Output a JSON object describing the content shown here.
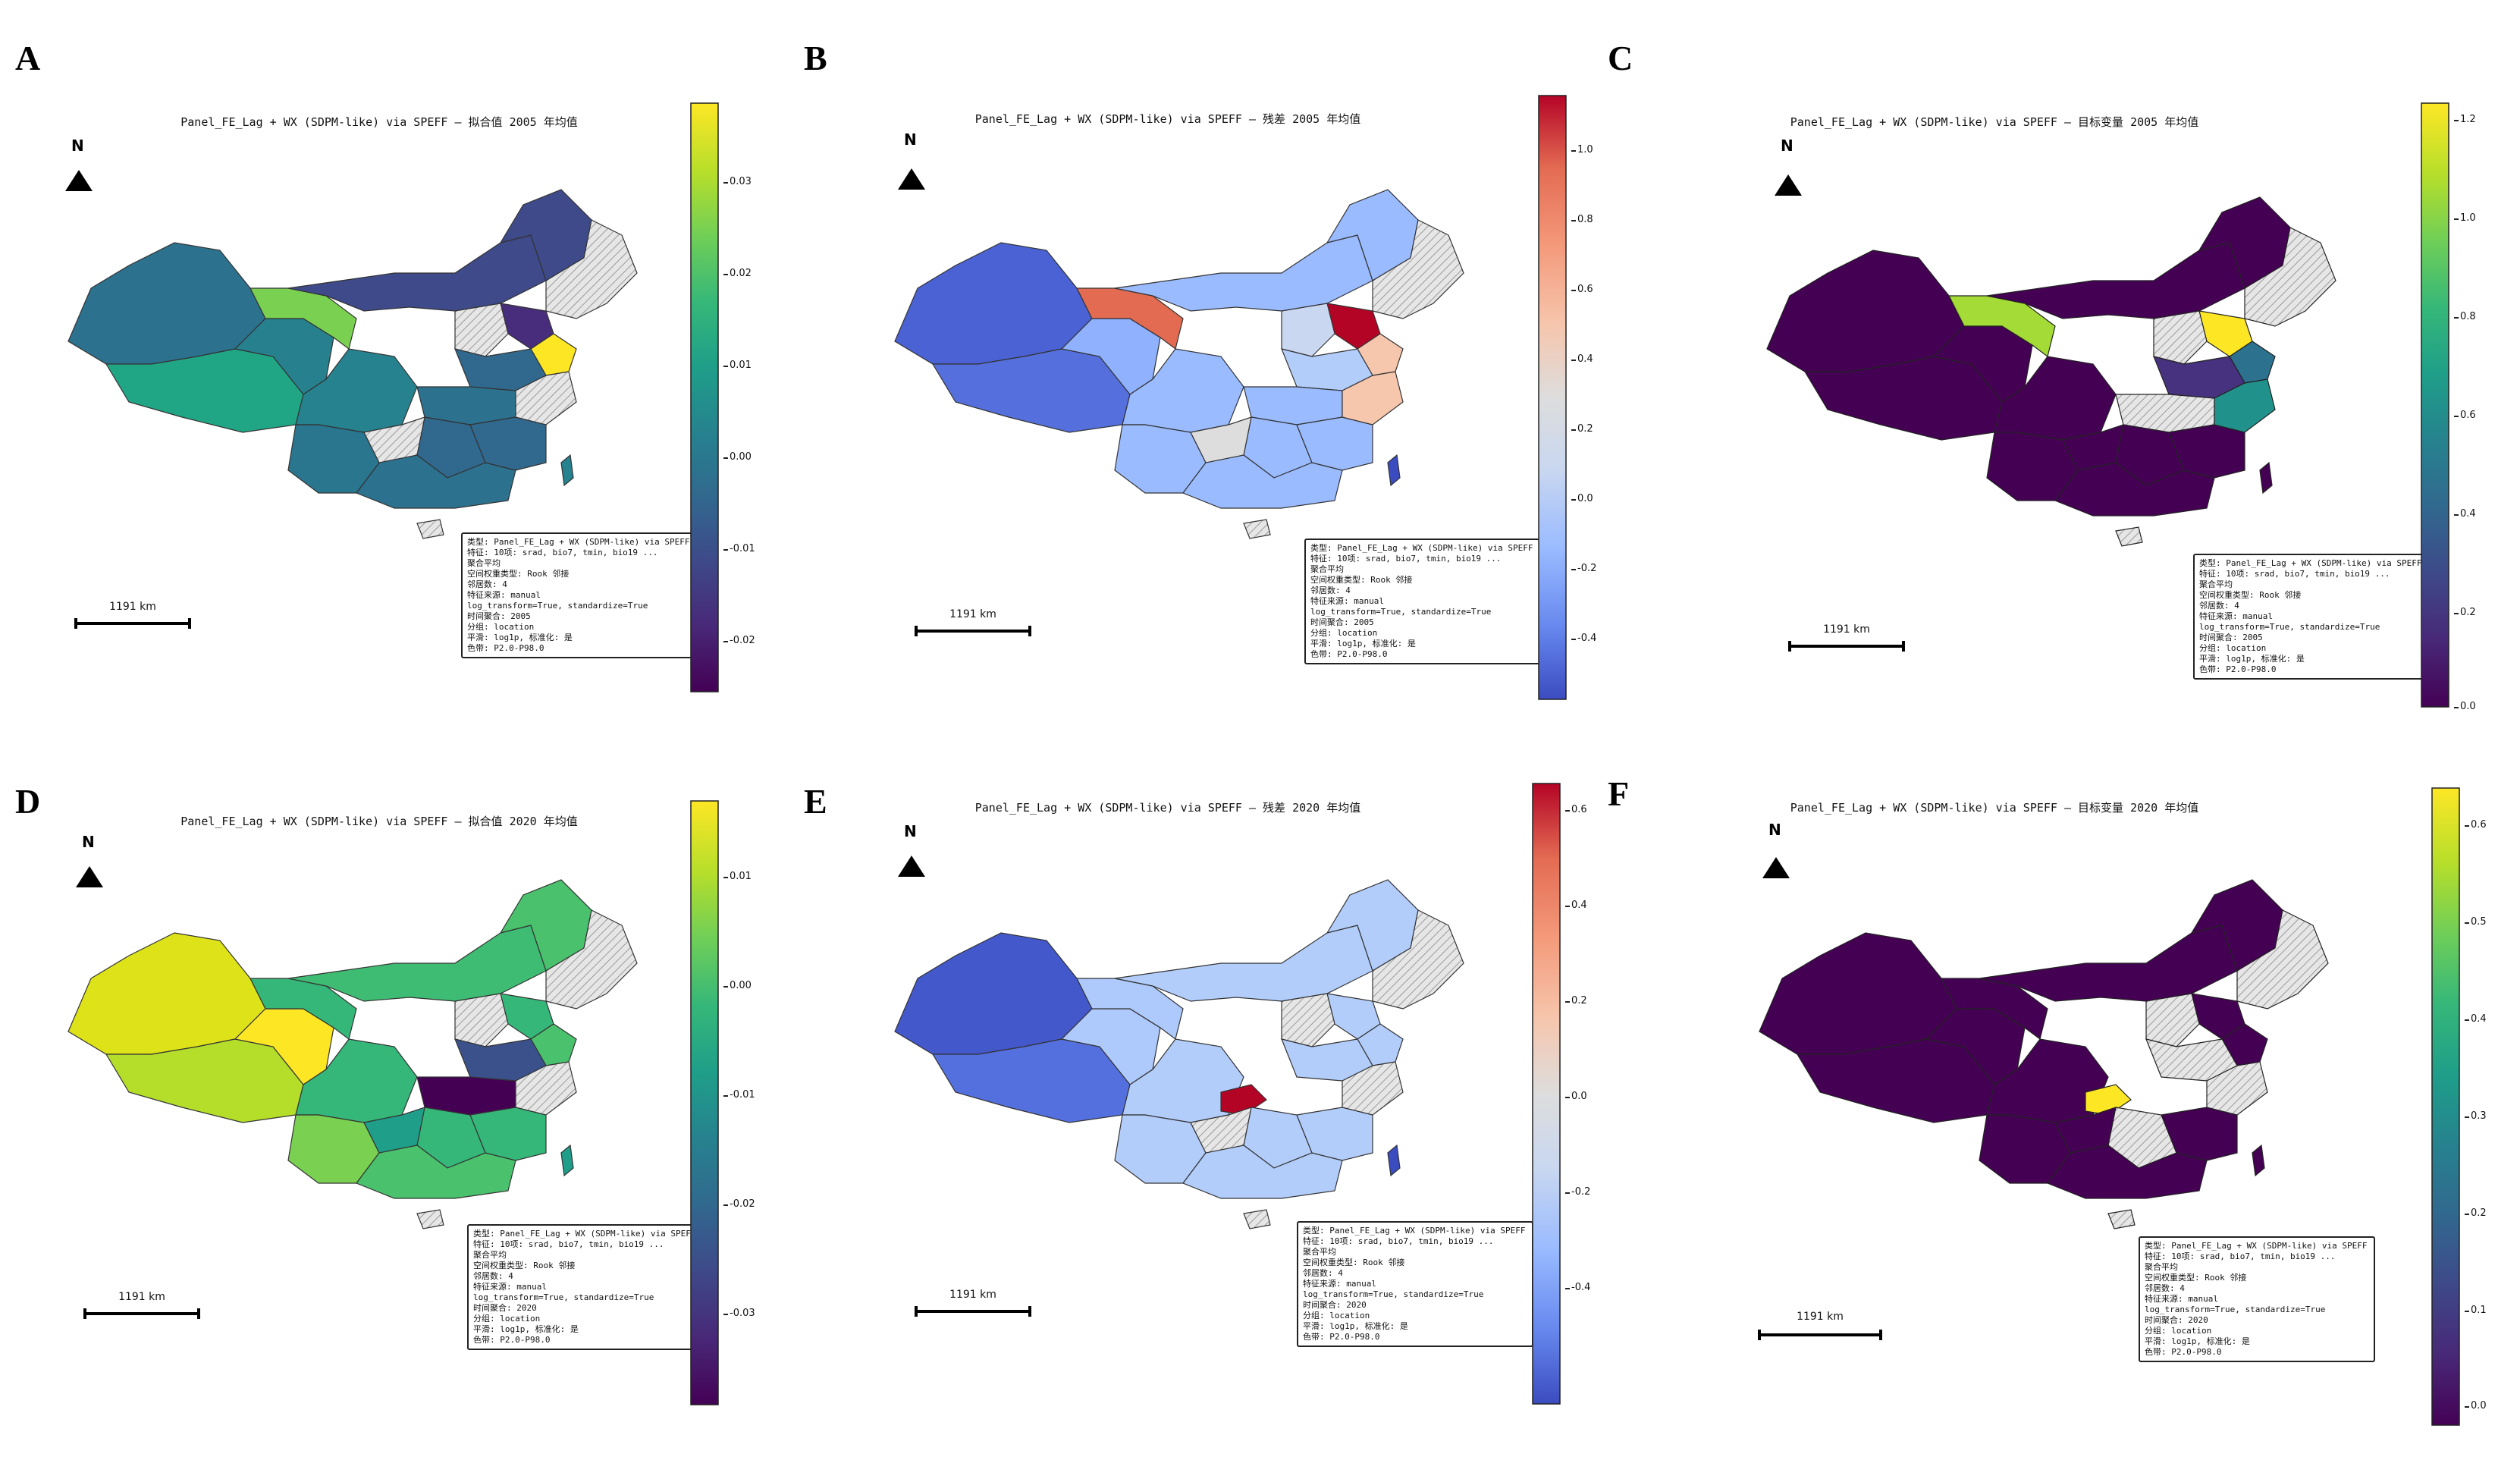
{
  "colors": {
    "viridis": [
      "#440154",
      "#482878",
      "#3e4989",
      "#31688e",
      "#26828e",
      "#1f9e89",
      "#35b779",
      "#6ece58",
      "#b5de2b",
      "#fde725"
    ],
    "coolwarm": [
      "#3b4cc0",
      "#6788ee",
      "#9abbff",
      "#c9d7f0",
      "#dddddd",
      "#f6c6ad",
      "#f49a7b",
      "#e36b52",
      "#b40426"
    ],
    "hatch": "#d9d9d9",
    "border": "#333333"
  },
  "panels": [
    {
      "letter": "A",
      "title": "Panel_FE_Lag + WX (SDPM-like) via SPEFF — 拟合值 2005 年均值",
      "north": "N",
      "scale_label": "1191 km",
      "colormap": "viridis",
      "ticks": [
        "0.03",
        "0.02",
        "0.01",
        "0.00",
        "-0.01",
        "-0.02"
      ],
      "info": [
        "类型: Panel_FE_Lag + WX (SDPM-like) via SPEFF",
        "特征: 10项: srad, bio7, tmin, bio19 ...",
        "聚合平均",
        "空间权重类型: Rook 邻接",
        "邻居数: 4",
        "特征来源: manual",
        "log_transform=True, standardize=True",
        "时间聚合: 2005",
        "分组: location",
        "平滑: log1p, 标准化: 是",
        "色带: P2.0-P98.0"
      ]
    },
    {
      "letter": "B",
      "title": "Panel_FE_Lag + WX (SDPM-like) via SPEFF — 残差 2005 年均值",
      "north": "N",
      "scale_label": "1191 km",
      "colormap": "coolwarm",
      "ticks": [
        "1.0",
        "0.8",
        "0.6",
        "0.4",
        "0.2",
        "0.0",
        "-0.2",
        "-0.4"
      ],
      "info": [
        "类型: Panel_FE_Lag + WX (SDPM-like) via SPEFF",
        "特征: 10项: srad, bio7, tmin, bio19 ...",
        "聚合平均",
        "空间权重类型: Rook 邻接",
        "邻居数: 4",
        "特征来源: manual",
        "log_transform=True, standardize=True",
        "时间聚合: 2005",
        "分组: location",
        "平滑: log1p, 标准化: 是",
        "色带: P2.0-P98.0"
      ]
    },
    {
      "letter": "C",
      "title": "Panel_FE_Lag + WX (SDPM-like) via SPEFF — 目标变量 2005 年均值",
      "north": "N",
      "scale_label": "1191 km",
      "colormap": "viridis",
      "ticks": [
        "1.2",
        "1.0",
        "0.8",
        "0.6",
        "0.4",
        "0.2",
        "0.0"
      ],
      "info": [
        "类型: Panel_FE_Lag + WX (SDPM-like) via SPEFF",
        "特征: 10项: srad, bio7, tmin, bio19 ...",
        "聚合平均",
        "空间权重类型: Rook 邻接",
        "邻居数: 4",
        "特征来源: manual",
        "log_transform=True, standardize=True",
        "时间聚合: 2005",
        "分组: location",
        "平滑: log1p, 标准化: 是",
        "色带: P2.0-P98.0"
      ]
    },
    {
      "letter": "D",
      "title": "Panel_FE_Lag + WX (SDPM-like) via SPEFF — 拟合值 2020 年均值",
      "north": "N",
      "scale_label": "1191 km",
      "colormap": "viridis",
      "ticks": [
        "0.01",
        "0.00",
        "-0.01",
        "-0.02",
        "-0.03"
      ],
      "info": [
        "类型: Panel_FE_Lag + WX (SDPM-like) via SPEFF",
        "特征: 10项: srad, bio7, tmin, bio19 ...",
        "聚合平均",
        "空间权重类型: Rook 邻接",
        "邻居数: 4",
        "特征来源: manual",
        "log_transform=True, standardize=True",
        "时间聚合: 2020",
        "分组: location",
        "平滑: log1p, 标准化: 是",
        "色带: P2.0-P98.0"
      ]
    },
    {
      "letter": "E",
      "title": "Panel_FE_Lag + WX (SDPM-like) via SPEFF — 残差 2020 年均值",
      "north": "N",
      "scale_label": "1191 km",
      "colormap": "coolwarm",
      "ticks": [
        "0.6",
        "0.4",
        "0.2",
        "0.0",
        "-0.2",
        "-0.4"
      ],
      "info": [
        "类型: Panel_FE_Lag + WX (SDPM-like) via SPEFF",
        "特征: 10项: srad, bio7, tmin, bio19 ...",
        "聚合平均",
        "空间权重类型: Rook 邻接",
        "邻居数: 4",
        "特征来源: manual",
        "log_transform=True, standardize=True",
        "时间聚合: 2020",
        "分组: location",
        "平滑: log1p, 标准化: 是",
        "色带: P2.0-P98.0"
      ]
    },
    {
      "letter": "F",
      "title": "Panel_FE_Lag + WX (SDPM-like) via SPEFF — 目标变量 2020 年均值",
      "north": "N",
      "scale_label": "1191 km",
      "colormap": "viridis",
      "ticks": [
        "0.6",
        "0.5",
        "0.4",
        "0.3",
        "0.2",
        "0.1",
        "0.0"
      ],
      "info": [
        "类型: Panel_FE_Lag + WX (SDPM-like) via SPEFF",
        "特征: 10项: srad, bio7, tmin, bio19 ...",
        "聚合平均",
        "空间权重类型: Rook 邻接",
        "邻居数: 4",
        "特征来源: manual",
        "log_transform=True, standardize=True",
        "时间聚合: 2020",
        "分组: location",
        "平滑: log1p, 标准化: 是",
        "色带: P2.0-P98.0"
      ]
    }
  ]
}
